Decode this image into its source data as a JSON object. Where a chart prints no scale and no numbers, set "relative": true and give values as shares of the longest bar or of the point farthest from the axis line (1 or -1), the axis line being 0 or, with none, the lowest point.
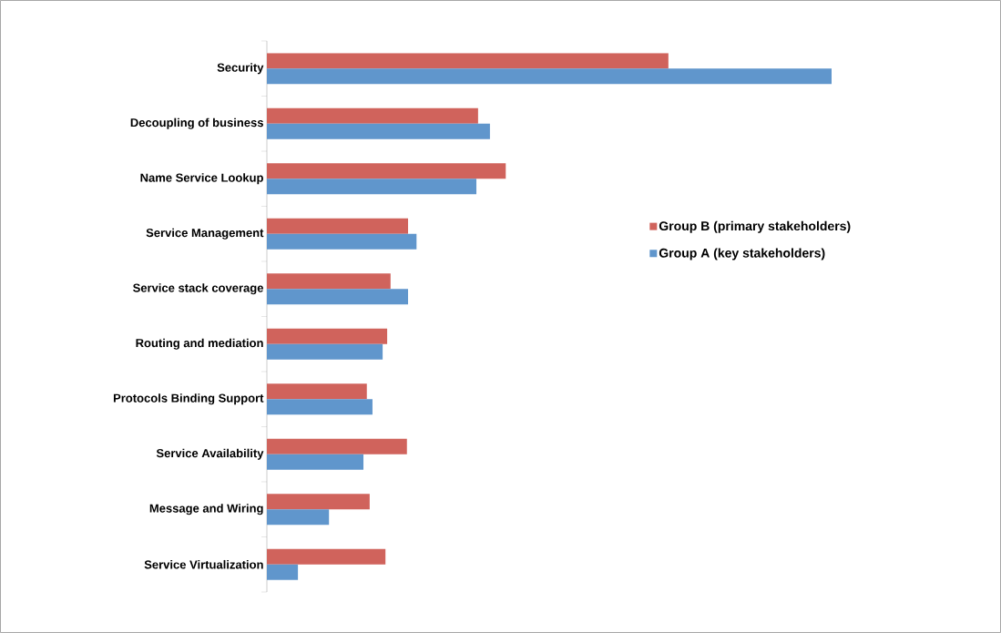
{
  "chart_data": {
    "type": "bar",
    "orientation": "horizontal",
    "relative": true,
    "categories": [
      "Security",
      "Decoupling of business",
      "Name Service Lookup",
      "Service Management",
      "Service stack coverage",
      "Routing and mediation",
      "Protocols Binding Support",
      "Service Availability",
      "Message and Wiring",
      "Service Virtualization"
    ],
    "series": [
      {
        "name": "Group B (primary stakeholders)",
        "color": "#d0635c",
        "values": [
          0.711,
          0.374,
          0.423,
          0.25,
          0.219,
          0.213,
          0.177,
          0.248,
          0.182,
          0.21
        ]
      },
      {
        "name": "Group A (key stakeholders)",
        "color": "#6096cc",
        "values": [
          1,
          0.395,
          0.371,
          0.265,
          0.25,
          0.205,
          0.187,
          0.171,
          0.11,
          0.055
        ]
      }
    ],
    "legend": "right"
  }
}
